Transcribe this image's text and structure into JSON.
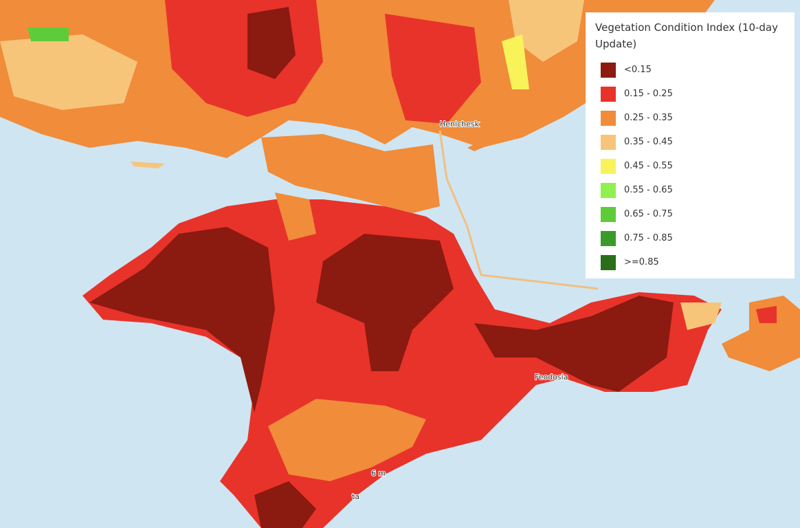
{
  "legend": {
    "title": "Vegetation Condition Index (10-day Update)",
    "items": [
      {
        "label": "<0.15",
        "color": "#8b1a10"
      },
      {
        "label": "0.15 - 0.25",
        "color": "#e8332a"
      },
      {
        "label": "0.25 - 0.35",
        "color": "#f08c3a"
      },
      {
        "label": "0.35 - 0.45",
        "color": "#f7c57a"
      },
      {
        "label": "0.45 - 0.55",
        "color": "#f9f35a"
      },
      {
        "label": "0.55 - 0.65",
        "color": "#90f050"
      },
      {
        "label": "0.65 - 0.75",
        "color": "#5ecc3a"
      },
      {
        "label": "0.75 - 0.85",
        "color": "#3a9a2a"
      },
      {
        "label": ">=0.85",
        "color": "#2a6e1a"
      }
    ]
  },
  "places": [
    {
      "label": "Henichesk"
    },
    {
      "label": "Feodosia"
    },
    {
      "label": "6 m"
    },
    {
      "label": "ta"
    }
  ]
}
